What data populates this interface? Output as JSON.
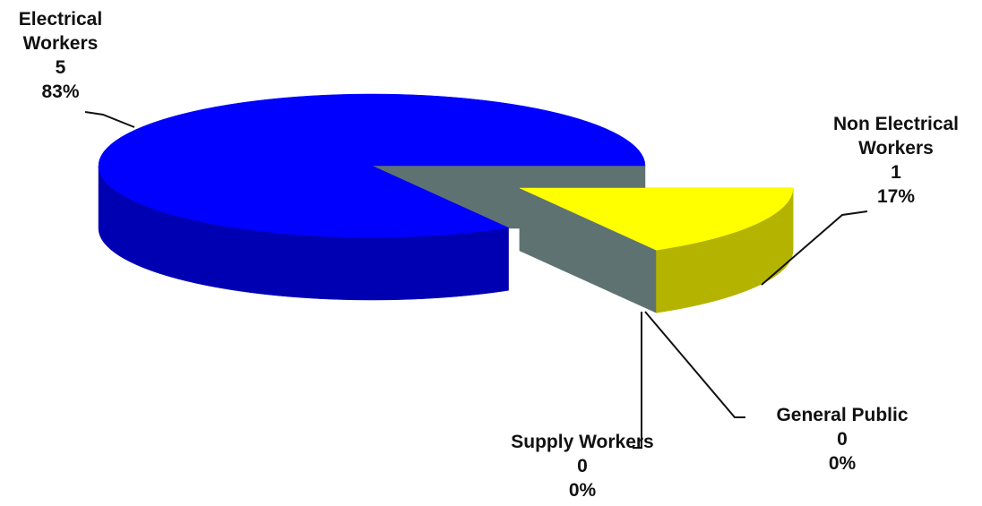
{
  "chart_data": {
    "type": "pie",
    "slices": [
      {
        "name": "Electrical Workers",
        "value": 5,
        "percent_label": "83%",
        "color": "#0000ff"
      },
      {
        "name": "Non Electrical Workers",
        "value": 1,
        "percent_label": "17%",
        "color": "#ffff00"
      },
      {
        "name": "General Public",
        "value": 0,
        "percent_label": "0%"
      },
      {
        "name": "Supply Workers",
        "value": 0,
        "percent_label": "0%"
      }
    ]
  }
}
